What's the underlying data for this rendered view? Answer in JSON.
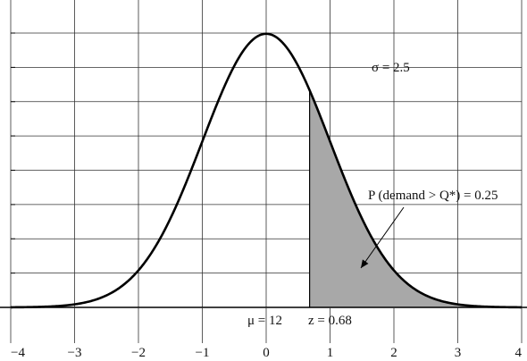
{
  "chart_data": {
    "type": "line",
    "title": "",
    "xlabel": "",
    "ylabel": "",
    "xlim": [
      -4,
      4
    ],
    "ylim": [
      0,
      0.4
    ],
    "x_ticks": [
      -4,
      -3,
      -2,
      -1,
      0,
      1,
      2,
      3,
      4
    ],
    "x_tick_labels": [
      "−4",
      "−3",
      "−2",
      "−1",
      "0",
      "1",
      "2",
      "3",
      "4"
    ],
    "y_ticks": [
      0.05,
      0.1,
      0.15,
      0.2,
      0.25,
      0.3,
      0.35,
      0.4
    ],
    "grid": true,
    "series": [
      {
        "name": "",
        "distribution": "standard normal",
        "mean": 0,
        "sd": 1,
        "x": [
          -4,
          -3.5,
          -3,
          -2.5,
          -2,
          -1.5,
          -1,
          -0.5,
          0,
          0.5,
          1,
          1.5,
          2,
          2.5,
          3,
          3.5,
          4
        ],
        "y": [
          0.0001,
          0.0009,
          0.0044,
          0.0175,
          0.054,
          0.1295,
          0.242,
          0.3521,
          0.3989,
          0.3521,
          0.242,
          0.1295,
          0.054,
          0.0175,
          0.0044,
          0.0009,
          0.0001
        ]
      }
    ],
    "shaded_region": {
      "from": 0.68,
      "to": 4,
      "area": 0.25
    },
    "annotations": {
      "sigma": "σ = 2.5",
      "probability": "P (demand > Q*) = 0.25",
      "mu": "μ = 12",
      "z": "z = 0.68"
    },
    "colors": {
      "curve": "#000000",
      "shade": "#a8a8a8",
      "grid": "#333333"
    }
  }
}
